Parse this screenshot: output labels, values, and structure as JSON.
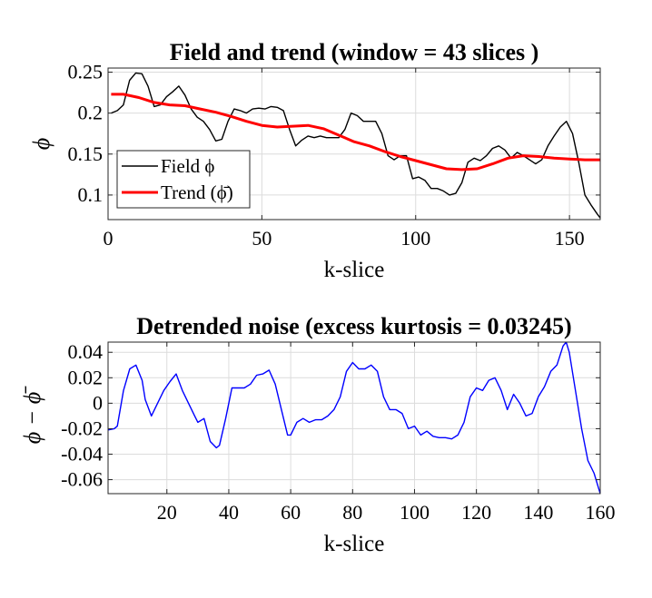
{
  "chart_data": [
    {
      "type": "line",
      "title": "Field and trend (window = 43 slices )",
      "xlabel": "k-slice",
      "ylabel": "ϕ",
      "xlim": [
        0,
        160
      ],
      "ylim": [
        0.07,
        0.255
      ],
      "xticks": [
        0,
        50,
        100,
        150
      ],
      "xtick_labels": [
        "0",
        "50",
        "100",
        "150"
      ],
      "yticks": [
        0.1,
        0.15,
        0.2,
        0.25
      ],
      "ytick_labels": [
        "0.1",
        "0.15",
        "0.2",
        "0.25"
      ],
      "grid": true,
      "legend_position": "bottom-left",
      "legend": [
        "Field ϕ",
        "Trend (ϕ̄)"
      ],
      "series": [
        {
          "name": "Field ϕ",
          "color": "#000000",
          "x": [
            1,
            3,
            5,
            7,
            9,
            11,
            13,
            15,
            17,
            19,
            21,
            23,
            25,
            27,
            29,
            31,
            33,
            35,
            37,
            39,
            41,
            43,
            45,
            47,
            49,
            51,
            53,
            55,
            57,
            59,
            61,
            63,
            65,
            67,
            69,
            71,
            73,
            75,
            77,
            79,
            81,
            83,
            85,
            87,
            89,
            91,
            93,
            95,
            97,
            99,
            101,
            103,
            105,
            107,
            109,
            111,
            113,
            115,
            117,
            119,
            121,
            123,
            125,
            127,
            129,
            131,
            133,
            135,
            137,
            139,
            141,
            143,
            145,
            147,
            149,
            151,
            153,
            155,
            157,
            159,
            160
          ],
          "y": [
            0.2,
            0.203,
            0.21,
            0.24,
            0.249,
            0.248,
            0.233,
            0.208,
            0.21,
            0.22,
            0.226,
            0.233,
            0.222,
            0.205,
            0.195,
            0.19,
            0.18,
            0.166,
            0.168,
            0.19,
            0.205,
            0.203,
            0.2,
            0.205,
            0.206,
            0.205,
            0.208,
            0.207,
            0.203,
            0.18,
            0.16,
            0.167,
            0.172,
            0.17,
            0.172,
            0.17,
            0.17,
            0.17,
            0.18,
            0.2,
            0.197,
            0.19,
            0.19,
            0.19,
            0.175,
            0.148,
            0.143,
            0.148,
            0.148,
            0.12,
            0.122,
            0.118,
            0.108,
            0.108,
            0.105,
            0.1,
            0.102,
            0.115,
            0.14,
            0.145,
            0.142,
            0.148,
            0.157,
            0.16,
            0.155,
            0.145,
            0.152,
            0.148,
            0.143,
            0.138,
            0.143,
            0.16,
            0.172,
            0.183,
            0.19,
            0.175,
            0.14,
            0.1,
            0.088,
            0.077,
            0.072
          ]
        },
        {
          "name": "Trend (ϕ̄)",
          "color": "#ff0000",
          "x": [
            1,
            5,
            10,
            15,
            20,
            25,
            30,
            35,
            40,
            45,
            50,
            55,
            60,
            65,
            70,
            75,
            80,
            85,
            90,
            95,
            100,
            105,
            110,
            115,
            120,
            125,
            130,
            135,
            140,
            145,
            150,
            155,
            160
          ],
          "y": [
            0.223,
            0.223,
            0.219,
            0.213,
            0.21,
            0.209,
            0.205,
            0.201,
            0.196,
            0.19,
            0.185,
            0.183,
            0.184,
            0.185,
            0.181,
            0.173,
            0.165,
            0.16,
            0.153,
            0.147,
            0.142,
            0.137,
            0.132,
            0.131,
            0.132,
            0.138,
            0.145,
            0.148,
            0.147,
            0.145,
            0.144,
            0.143,
            0.143
          ]
        }
      ]
    },
    {
      "type": "line",
      "title": "Detrended noise (excess kurtosis = 0.03245)",
      "xlabel": "k-slice",
      "ylabel": "ϕ − ϕ̄",
      "xlim": [
        1,
        160
      ],
      "ylim": [
        -0.071,
        0.048
      ],
      "xticks": [
        20,
        40,
        60,
        80,
        100,
        120,
        140,
        160
      ],
      "xtick_labels": [
        "20",
        "40",
        "60",
        "80",
        "100",
        "120",
        "140",
        "160"
      ],
      "yticks": [
        0.04,
        0.02,
        0,
        -0.02,
        -0.04,
        -0.06
      ],
      "ytick_labels": [
        "0.04",
        "0.02",
        "0",
        "-0.02",
        "-0.04",
        "-0.06"
      ],
      "grid": true,
      "series": [
        {
          "name": "noise",
          "color": "#0000ff",
          "x": [
            1,
            3,
            4,
            6,
            8,
            10,
            12,
            13,
            15,
            17,
            19,
            21,
            23,
            25,
            27,
            29,
            30,
            32,
            34,
            36,
            37,
            39,
            41,
            43,
            45,
            47,
            49,
            51,
            53,
            55,
            57,
            59,
            60,
            62,
            64,
            66,
            68,
            70,
            72,
            74,
            76,
            78,
            80,
            82,
            84,
            86,
            88,
            90,
            92,
            94,
            96,
            98,
            100,
            102,
            104,
            106,
            108,
            110,
            112,
            114,
            116,
            118,
            120,
            122,
            124,
            126,
            128,
            130,
            132,
            134,
            136,
            138,
            140,
            142,
            144,
            146,
            148,
            149,
            150,
            152,
            154,
            156,
            158,
            160
          ],
          "y": [
            -0.021,
            -0.02,
            -0.018,
            0.01,
            0.027,
            0.03,
            0.018,
            0.003,
            -0.01,
            0.0,
            0.01,
            0.017,
            0.023,
            0.01,
            0.0,
            -0.01,
            -0.015,
            -0.012,
            -0.03,
            -0.035,
            -0.033,
            -0.012,
            0.012,
            0.012,
            0.012,
            0.015,
            0.022,
            0.023,
            0.026,
            0.015,
            -0.005,
            -0.025,
            -0.025,
            -0.015,
            -0.012,
            -0.015,
            -0.013,
            -0.013,
            -0.01,
            -0.005,
            0.005,
            0.025,
            0.032,
            0.027,
            0.027,
            0.03,
            0.025,
            0.005,
            -0.005,
            -0.005,
            -0.008,
            -0.02,
            -0.018,
            -0.025,
            -0.022,
            -0.026,
            -0.027,
            -0.027,
            -0.028,
            -0.025,
            -0.015,
            0.005,
            0.012,
            0.01,
            0.018,
            0.02,
            0.01,
            -0.005,
            0.007,
            0.0,
            -0.01,
            -0.008,
            0.005,
            0.013,
            0.025,
            0.03,
            0.045,
            0.048,
            0.04,
            0.01,
            -0.02,
            -0.045,
            -0.055,
            -0.071
          ]
        }
      ]
    }
  ]
}
